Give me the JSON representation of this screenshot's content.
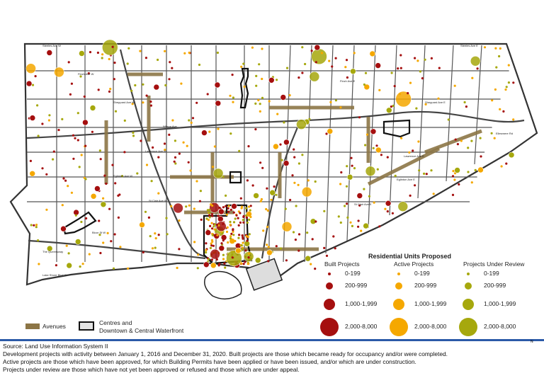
{
  "legend": {
    "title": "Residential Units Proposed",
    "columns": [
      {
        "label": "Built Projects",
        "color": "#a50f0f"
      },
      {
        "label": "Active Projects",
        "color": "#f5a800"
      },
      {
        "label": "Projects Under Review",
        "color": "#a6a80d"
      }
    ],
    "ranges": [
      "0-199",
      "200-999",
      "1,000-1,999",
      "2,000-8,000"
    ],
    "avenues_label": "Avenues",
    "avenues_color": "#8c7546",
    "centres_label_line1": "Centres and",
    "centres_label_line2": "Downtown & Central Waterfront"
  },
  "streets": [
    "Steeles Ave W",
    "Finch Ave W",
    "Sheppard Ave W",
    "Wilson Ave",
    "Lawrence Ave W",
    "Eglinton Ave W",
    "St Clair Ave W",
    "Bloor St W",
    "The Queensway",
    "Lake Shore Blvd W",
    "Steeles Ave E",
    "Finch Ave E",
    "Sheppard Ave E",
    "Ellesmere Rd",
    "Lawrence Ave E",
    "Eglinton Ave E",
    "St Clair Ave E"
  ],
  "footer": {
    "source": "Source: Land Use Information System II",
    "line1": "Development projects with activity between January 1, 2016 and December 31, 2020. Built projects are those which became ready for occupancy and/or were completed.",
    "line2": "Active projects are those which have been approved, for which Building Permits have been applied or have been issued, and/or which are under construction.",
    "line3": "Projects under review are those which have not yet been approved or refused and those which are under appeal.",
    "north": "N"
  }
}
